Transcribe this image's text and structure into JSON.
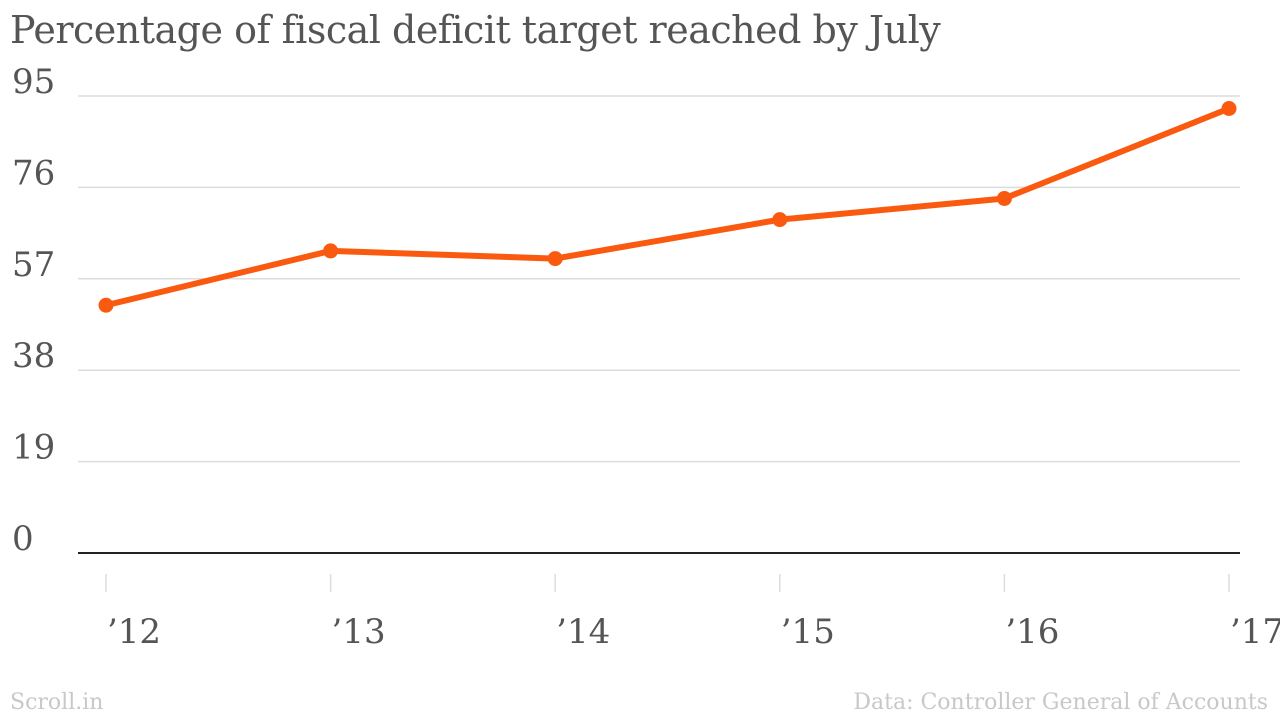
{
  "title": "Percentage of fiscal deficit target reached by July",
  "footer": {
    "brand": "Scroll.in",
    "source": "Data: Controller General of Accounts"
  },
  "chart_data": {
    "type": "line",
    "categories": [
      "’12",
      "’13",
      "’14",
      "’15",
      "’16",
      "’17"
    ],
    "values": [
      51.5,
      62.8,
      61.2,
      69.3,
      73.7,
      92.4
    ],
    "yticks": [
      0,
      19,
      38,
      57,
      76,
      95
    ],
    "ylim": [
      0,
      95
    ],
    "grid": true,
    "legend": "none",
    "colors": {
      "line": "#fa5a0f",
      "grid": "#dcdcdc",
      "axis": "#222222",
      "text": "#555555"
    }
  }
}
